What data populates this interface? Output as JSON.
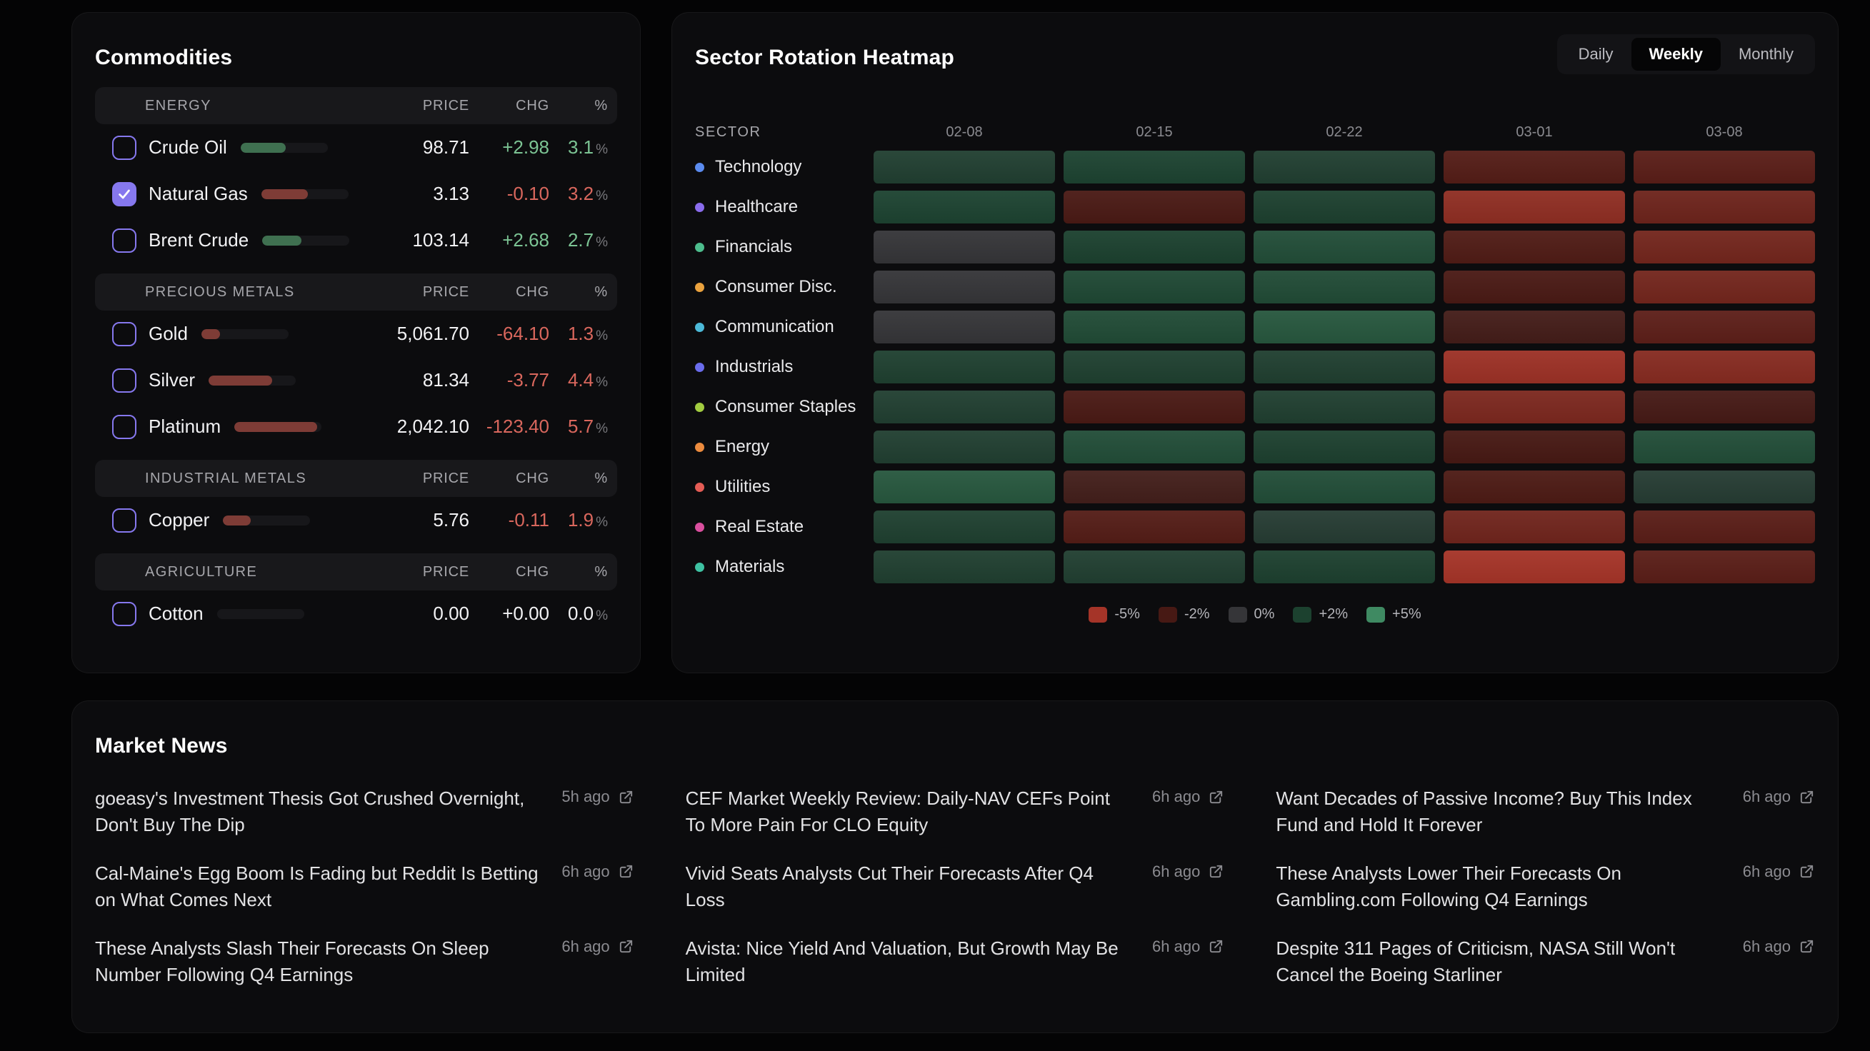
{
  "commodities": {
    "title": "Commodities",
    "columns": {
      "price": "PRICE",
      "chg": "CHG",
      "pct": "%"
    },
    "sections": [
      {
        "label": "ENERGY",
        "rows": [
          {
            "name": "Crude Oil",
            "checked": false,
            "price": "98.71",
            "chg": "+2.98",
            "pct": "3.1",
            "dir": "up"
          },
          {
            "name": "Natural Gas",
            "checked": true,
            "price": "3.13",
            "chg": "-0.10",
            "pct": "3.2",
            "dir": "down"
          },
          {
            "name": "Brent Crude",
            "checked": false,
            "price": "103.14",
            "chg": "+2.68",
            "pct": "2.7",
            "dir": "up"
          }
        ]
      },
      {
        "label": "PRECIOUS METALS",
        "rows": [
          {
            "name": "Gold",
            "checked": false,
            "price": "5,061.70",
            "chg": "-64.10",
            "pct": "1.3",
            "dir": "down"
          },
          {
            "name": "Silver",
            "checked": false,
            "price": "81.34",
            "chg": "-3.77",
            "pct": "4.4",
            "dir": "down"
          },
          {
            "name": "Platinum",
            "checked": false,
            "price": "2,042.10",
            "chg": "-123.40",
            "pct": "5.7",
            "dir": "down"
          }
        ]
      },
      {
        "label": "INDUSTRIAL METALS",
        "rows": [
          {
            "name": "Copper",
            "checked": false,
            "price": "5.76",
            "chg": "-0.11",
            "pct": "1.9",
            "dir": "down"
          }
        ]
      },
      {
        "label": "AGRICULTURE",
        "rows": [
          {
            "name": "Cotton",
            "checked": false,
            "price": "0.00",
            "chg": "+0.00",
            "pct": "0.0",
            "dir": "flat"
          }
        ]
      }
    ]
  },
  "heatmap": {
    "title": "Sector Rotation Heatmap",
    "tabs": [
      {
        "label": "Daily",
        "active": false
      },
      {
        "label": "Weekly",
        "active": true
      },
      {
        "label": "Monthly",
        "active": false
      }
    ],
    "sector_col_label": "SECTOR",
    "dates": [
      "02-08",
      "02-15",
      "02-22",
      "03-01",
      "03-08"
    ],
    "rows": [
      {
        "sector": "Technology",
        "dot": "#5b8bef",
        "values": [
          1.6,
          2.1,
          1.6,
          -2.4,
          -2.6
        ]
      },
      {
        "sector": "Healthcare",
        "dot": "#8a6cec",
        "values": [
          2.1,
          -2.1,
          1.9,
          -4.3,
          -3.2
        ]
      },
      {
        "sector": "Financials",
        "dot": "#4dbd8d",
        "values": [
          0.0,
          2.0,
          2.5,
          -2.3,
          -3.4
        ]
      },
      {
        "sector": "Consumer Disc.",
        "dot": "#eaa23e",
        "values": [
          0.0,
          2.3,
          2.4,
          -2.1,
          -3.4
        ]
      },
      {
        "sector": "Communication",
        "dot": "#4cb9d8",
        "values": [
          0.0,
          2.4,
          2.9,
          -1.7,
          -2.7
        ]
      },
      {
        "sector": "Industrials",
        "dot": "#6a6cec",
        "values": [
          1.8,
          1.8,
          1.7,
          -4.7,
          -4.0
        ]
      },
      {
        "sector": "Consumer Staples",
        "dot": "#a2cc40",
        "values": [
          1.6,
          -2.1,
          1.7,
          -3.7,
          -1.9
        ]
      },
      {
        "sector": "Energy",
        "dot": "#ec8b3e",
        "values": [
          1.6,
          2.5,
          1.9,
          -2.0,
          2.5
        ]
      },
      {
        "sector": "Utilities",
        "dot": "#e45c55",
        "values": [
          2.9,
          -1.6,
          2.5,
          -2.2,
          1.2
        ]
      },
      {
        "sector": "Real Estate",
        "dot": "#da4f9e",
        "values": [
          1.8,
          -2.4,
          1.2,
          -3.3,
          -2.6
        ]
      },
      {
        "sector": "Materials",
        "dot": "#3ec2a2",
        "values": [
          1.7,
          1.6,
          1.9,
          -5.0,
          -2.6
        ]
      }
    ],
    "legend": [
      {
        "label": "-5%",
        "value": -5
      },
      {
        "label": "-2%",
        "value": -2
      },
      {
        "label": "0%",
        "value": 0
      },
      {
        "label": "+2%",
        "value": 2
      },
      {
        "label": "+5%",
        "value": 5
      }
    ],
    "colors": {
      "neg_strong": "#a53428",
      "neg_mild": "#471914",
      "neutral": "#353538",
      "pos_mild": "#1c412f",
      "pos_strong": "#3f8a62"
    }
  },
  "news": {
    "title": "Market News",
    "items": [
      {
        "headline": "goeasy's Investment Thesis Got Crushed Overnight, Don't Buy The Dip",
        "time": "5h ago"
      },
      {
        "headline": "Cal-Maine's Egg Boom Is Fading but Reddit Is Betting on What Comes Next",
        "time": "6h ago"
      },
      {
        "headline": "These Analysts Slash Their Forecasts On Sleep Number Following Q4 Earnings",
        "time": "6h ago"
      },
      {
        "headline": "CEF Market Weekly Review: Daily-NAV CEFs Point To More Pain For CLO Equity",
        "time": "6h ago"
      },
      {
        "headline": "Vivid Seats Analysts Cut Their Forecasts After Q4 Loss",
        "time": "6h ago"
      },
      {
        "headline": "Avista: Nice Yield And Valuation, But Growth May Be Limited",
        "time": "6h ago"
      },
      {
        "headline": "Want Decades of Passive Income? Buy This Index Fund and Hold It Forever",
        "time": "6h ago"
      },
      {
        "headline": "These Analysts Lower Their Forecasts On Gambling.com Following Q4 Earnings",
        "time": "6h ago"
      },
      {
        "headline": "Despite 311 Pages of Criticism, NASA Still Won't Cancel the Boeing Starliner",
        "time": "6h ago"
      }
    ]
  }
}
